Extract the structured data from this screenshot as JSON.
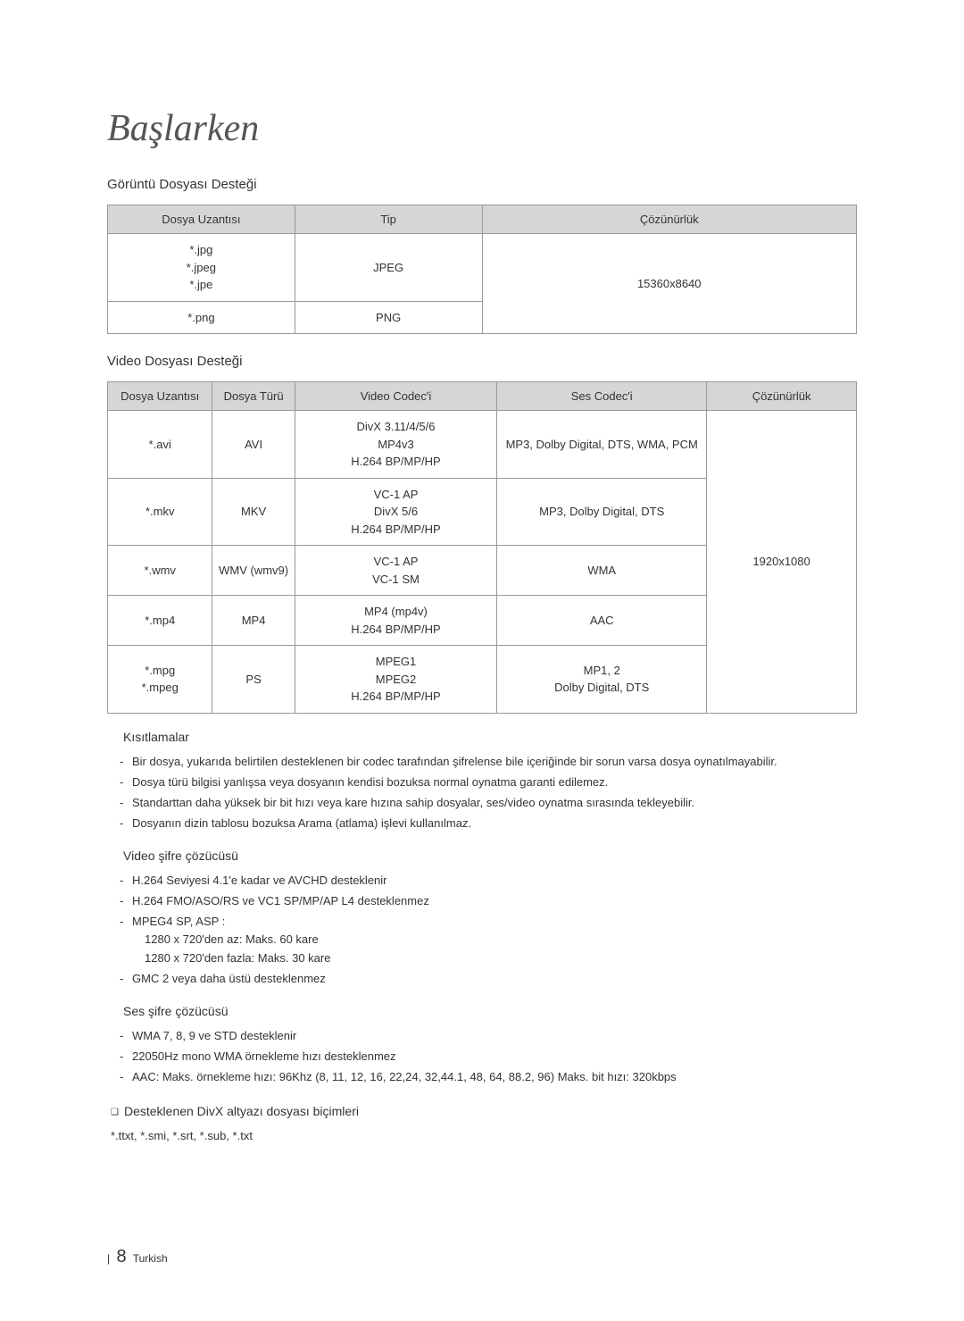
{
  "title": "Başlarken",
  "image_support": {
    "heading": "Görüntü Dosyası Desteği",
    "headers": [
      "Dosya Uzantısı",
      "Tip",
      "Çözünürlük"
    ],
    "rows": [
      {
        "ext": "*.jpg\n*.jpeg\n*.jpe",
        "type": "JPEG"
      },
      {
        "ext": "*.png",
        "type": "PNG"
      }
    ],
    "resolution": "15360x8640"
  },
  "video_support": {
    "heading": "Video Dosyası Desteği",
    "headers": [
      "Dosya Uzantısı",
      "Dosya Türü",
      "Video Codec'i",
      "Ses Codec'i",
      "Çözünürlük"
    ],
    "rows": [
      {
        "ext": "*.avi",
        "container": "AVI",
        "vcodec": "DivX 3.11/4/5/6\nMP4v3\nH.264 BP/MP/HP",
        "acodec": "MP3, Dolby Digital, DTS, WMA, PCM"
      },
      {
        "ext": "*.mkv",
        "container": "MKV",
        "vcodec": "VC-1 AP\nDivX 5/6\nH.264 BP/MP/HP",
        "acodec": "MP3, Dolby Digital, DTS"
      },
      {
        "ext": "*.wmv",
        "container": "WMV (wmv9)",
        "vcodec": "VC-1 AP\nVC-1 SM",
        "acodec": "WMA"
      },
      {
        "ext": "*.mp4",
        "container": "MP4",
        "vcodec": "MP4 (mp4v)\nH.264 BP/MP/HP",
        "acodec": "AAC"
      },
      {
        "ext": "*.mpg\n*.mpeg",
        "container": "PS",
        "vcodec": "MPEG1\nMPEG2\nH.264 BP/MP/HP",
        "acodec": "MP1, 2\nDolby Digital, DTS"
      }
    ],
    "resolution": "1920x1080"
  },
  "limitations": {
    "heading": "Kısıtlamalar",
    "items": [
      "Bir dosya, yukarıda belirtilen desteklenen bir codec tarafından şifrelense bile içeriğinde bir sorun varsa dosya oynatılmayabilir.",
      "Dosya türü bilgisi yanlışsa veya dosyanın kendisi bozuksa normal oynatma garanti edilemez.",
      "Standarttan daha yüksek bir bit hızı veya kare hızına sahip dosyalar, ses/video oynatma sırasında tekleyebilir.",
      "Dosyanın dizin tablosu bozuksa Arama (atlama) işlevi kullanılmaz."
    ]
  },
  "video_decoder": {
    "heading": "Video şifre çözücüsü",
    "items": [
      {
        "text": "H.264 Seviyesi 4.1'e kadar ve AVCHD desteklenir"
      },
      {
        "text": "H.264 FMO/ASO/RS ve VC1 SP/MP/AP L4 desteklenmez"
      },
      {
        "text": "MPEG4 SP, ASP :",
        "sub": [
          "1280 x 720'den az: Maks. 60 kare",
          "1280 x 720'den fazla: Maks. 30 kare"
        ]
      },
      {
        "text": "GMC 2 veya daha üstü desteklenmez"
      }
    ]
  },
  "audio_decoder": {
    "heading": "Ses şifre çözücüsü",
    "items": [
      "WMA 7, 8, 9 ve STD desteklenir",
      "22050Hz mono WMA örnekleme hızı desteklenmez",
      "AAC: Maks. örnekleme hızı: 96Khz (8, 11, 12, 16, 22,24, 32,44.1, 48, 64, 88.2, 96) Maks. bit hızı: 320kbps"
    ]
  },
  "divx": {
    "heading": "Desteklenen DivX altyazı dosyası biçimleri",
    "text": "*.ttxt, *.smi, *.srt, *.sub, *.txt"
  },
  "footer": {
    "page": "8",
    "lang": "Turkish"
  },
  "colors": {
    "header_bg": "#d6d6d6",
    "border": "#999999",
    "text": "#333333",
    "background": "#ffffff"
  }
}
